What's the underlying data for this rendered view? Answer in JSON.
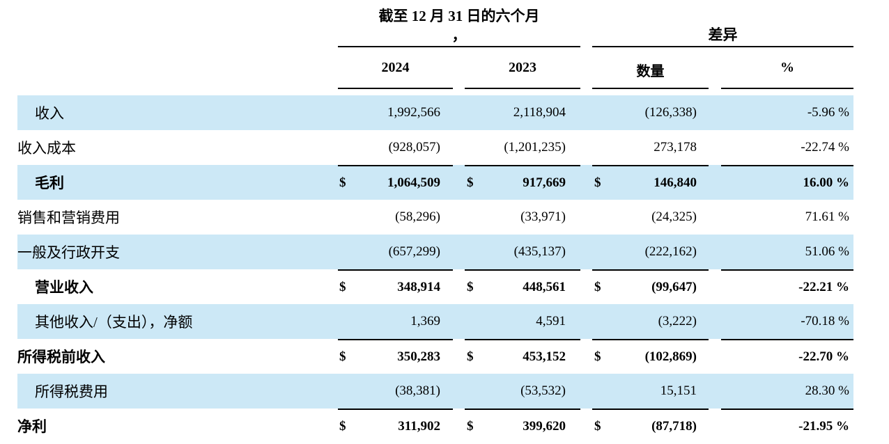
{
  "header": {
    "period_group_line1": "截至 12 月 31 日的六个月",
    "period_group_line2": "，",
    "difference_group": "差异",
    "col_2024": "2024",
    "col_2023": "2023",
    "col_amount": "数量",
    "col_percent": "%"
  },
  "colors": {
    "row_highlight": "#cce8f6",
    "rule": "#000000",
    "text": "#000000"
  },
  "rows": [
    {
      "label": "收入",
      "v1": "1,992,566",
      "v2": "2,118,904",
      "v3": "(126,338)",
      "pct": "-5.96 %"
    },
    {
      "label": "收入成本",
      "v1": "(928,057)",
      "v2": "(1,201,235)",
      "v3": "273,178",
      "pct": "-22.74 %"
    },
    {
      "label": "毛利",
      "d1": "$",
      "v1": "1,064,509",
      "d2": "$",
      "v2": "917,669",
      "d3": "$",
      "v3": "146,840",
      "pct": "16.00 %"
    },
    {
      "label": "销售和营销费用",
      "v1": "(58,296)",
      "v2": "(33,971)",
      "v3": "(24,325)",
      "pct": "71.61 %"
    },
    {
      "label": "一般及行政开支",
      "v1": "(657,299)",
      "v2": "(435,137)",
      "v3": "(222,162)",
      "pct": "51.06 %"
    },
    {
      "label": "营业收入",
      "d1": "$",
      "v1": "348,914",
      "d2": "$",
      "v2": "448,561",
      "d3": "$",
      "v3": "(99,647)",
      "pct": "-22.21 %"
    },
    {
      "label": "其他收入/（支出），净额",
      "v1": "1,369",
      "v2": "4,591",
      "v3": "(3,222)",
      "pct": "-70.18 %"
    },
    {
      "label": "所得税前收入",
      "d1": "$",
      "v1": "350,283",
      "d2": "$",
      "v2": "453,152",
      "d3": "$",
      "v3": "(102,869)",
      "pct": "-22.70 %"
    },
    {
      "label": "所得税费用",
      "v1": "(38,381)",
      "v2": "(53,532)",
      "v3": "15,151",
      "pct": "28.30 %"
    },
    {
      "label": "净利",
      "d1": "$",
      "v1": "311,902",
      "d2": "$",
      "v2": "399,620",
      "d3": "$",
      "v3": "(87,718)",
      "pct": "-21.95 %"
    }
  ]
}
